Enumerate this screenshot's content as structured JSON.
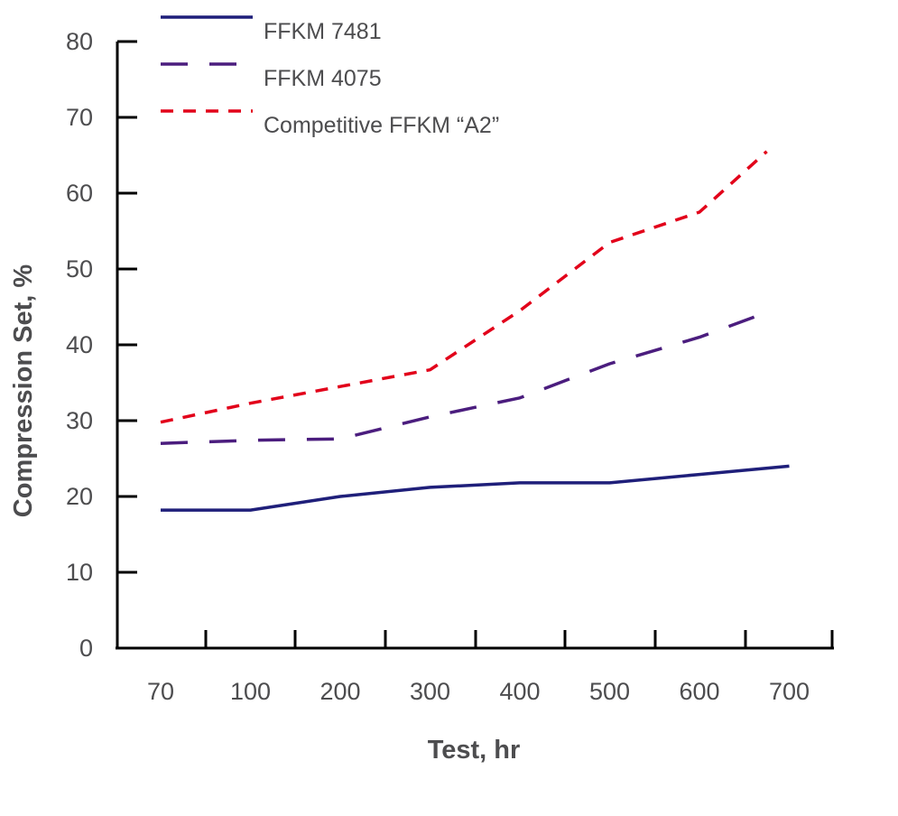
{
  "chart_data": {
    "type": "line",
    "categories": [
      "70",
      "100",
      "200",
      "300",
      "400",
      "500",
      "600",
      "700"
    ],
    "ylabel": "Compression Set, %",
    "xlabel": "Test, hr",
    "ylim": [
      0,
      80
    ],
    "yticks": [
      0,
      10,
      20,
      30,
      40,
      50,
      60,
      70,
      80
    ],
    "grid": false,
    "legend_position": "top-left",
    "series": [
      {
        "name": "FFKM 7481",
        "color": "#1f1f7a",
        "style": "solid",
        "points": [
          [
            0,
            18.2
          ],
          [
            1,
            18.2
          ],
          [
            2,
            20.0
          ],
          [
            3,
            21.2
          ],
          [
            4,
            21.8
          ],
          [
            5,
            21.8
          ],
          [
            6,
            22.9
          ],
          [
            7,
            24.0
          ]
        ]
      },
      {
        "name": "FFKM 4075",
        "color": "#4b1d7e",
        "style": "long-dash",
        "points": [
          [
            0,
            27.0
          ],
          [
            1,
            27.4
          ],
          [
            2,
            27.6
          ],
          [
            3,
            30.5
          ],
          [
            4,
            33.0
          ],
          [
            5,
            37.5
          ],
          [
            6,
            41.0
          ],
          [
            6.8,
            44.5
          ]
        ]
      },
      {
        "name": "Competitive FFKM “A2”",
        "color": "#e2001a",
        "style": "short-dash",
        "points": [
          [
            0,
            29.8
          ],
          [
            1,
            32.3
          ],
          [
            2,
            34.5
          ],
          [
            3,
            36.7
          ],
          [
            4,
            44.5
          ],
          [
            5,
            53.5
          ],
          [
            6,
            57.5
          ],
          [
            6.75,
            65.5
          ]
        ]
      }
    ]
  }
}
